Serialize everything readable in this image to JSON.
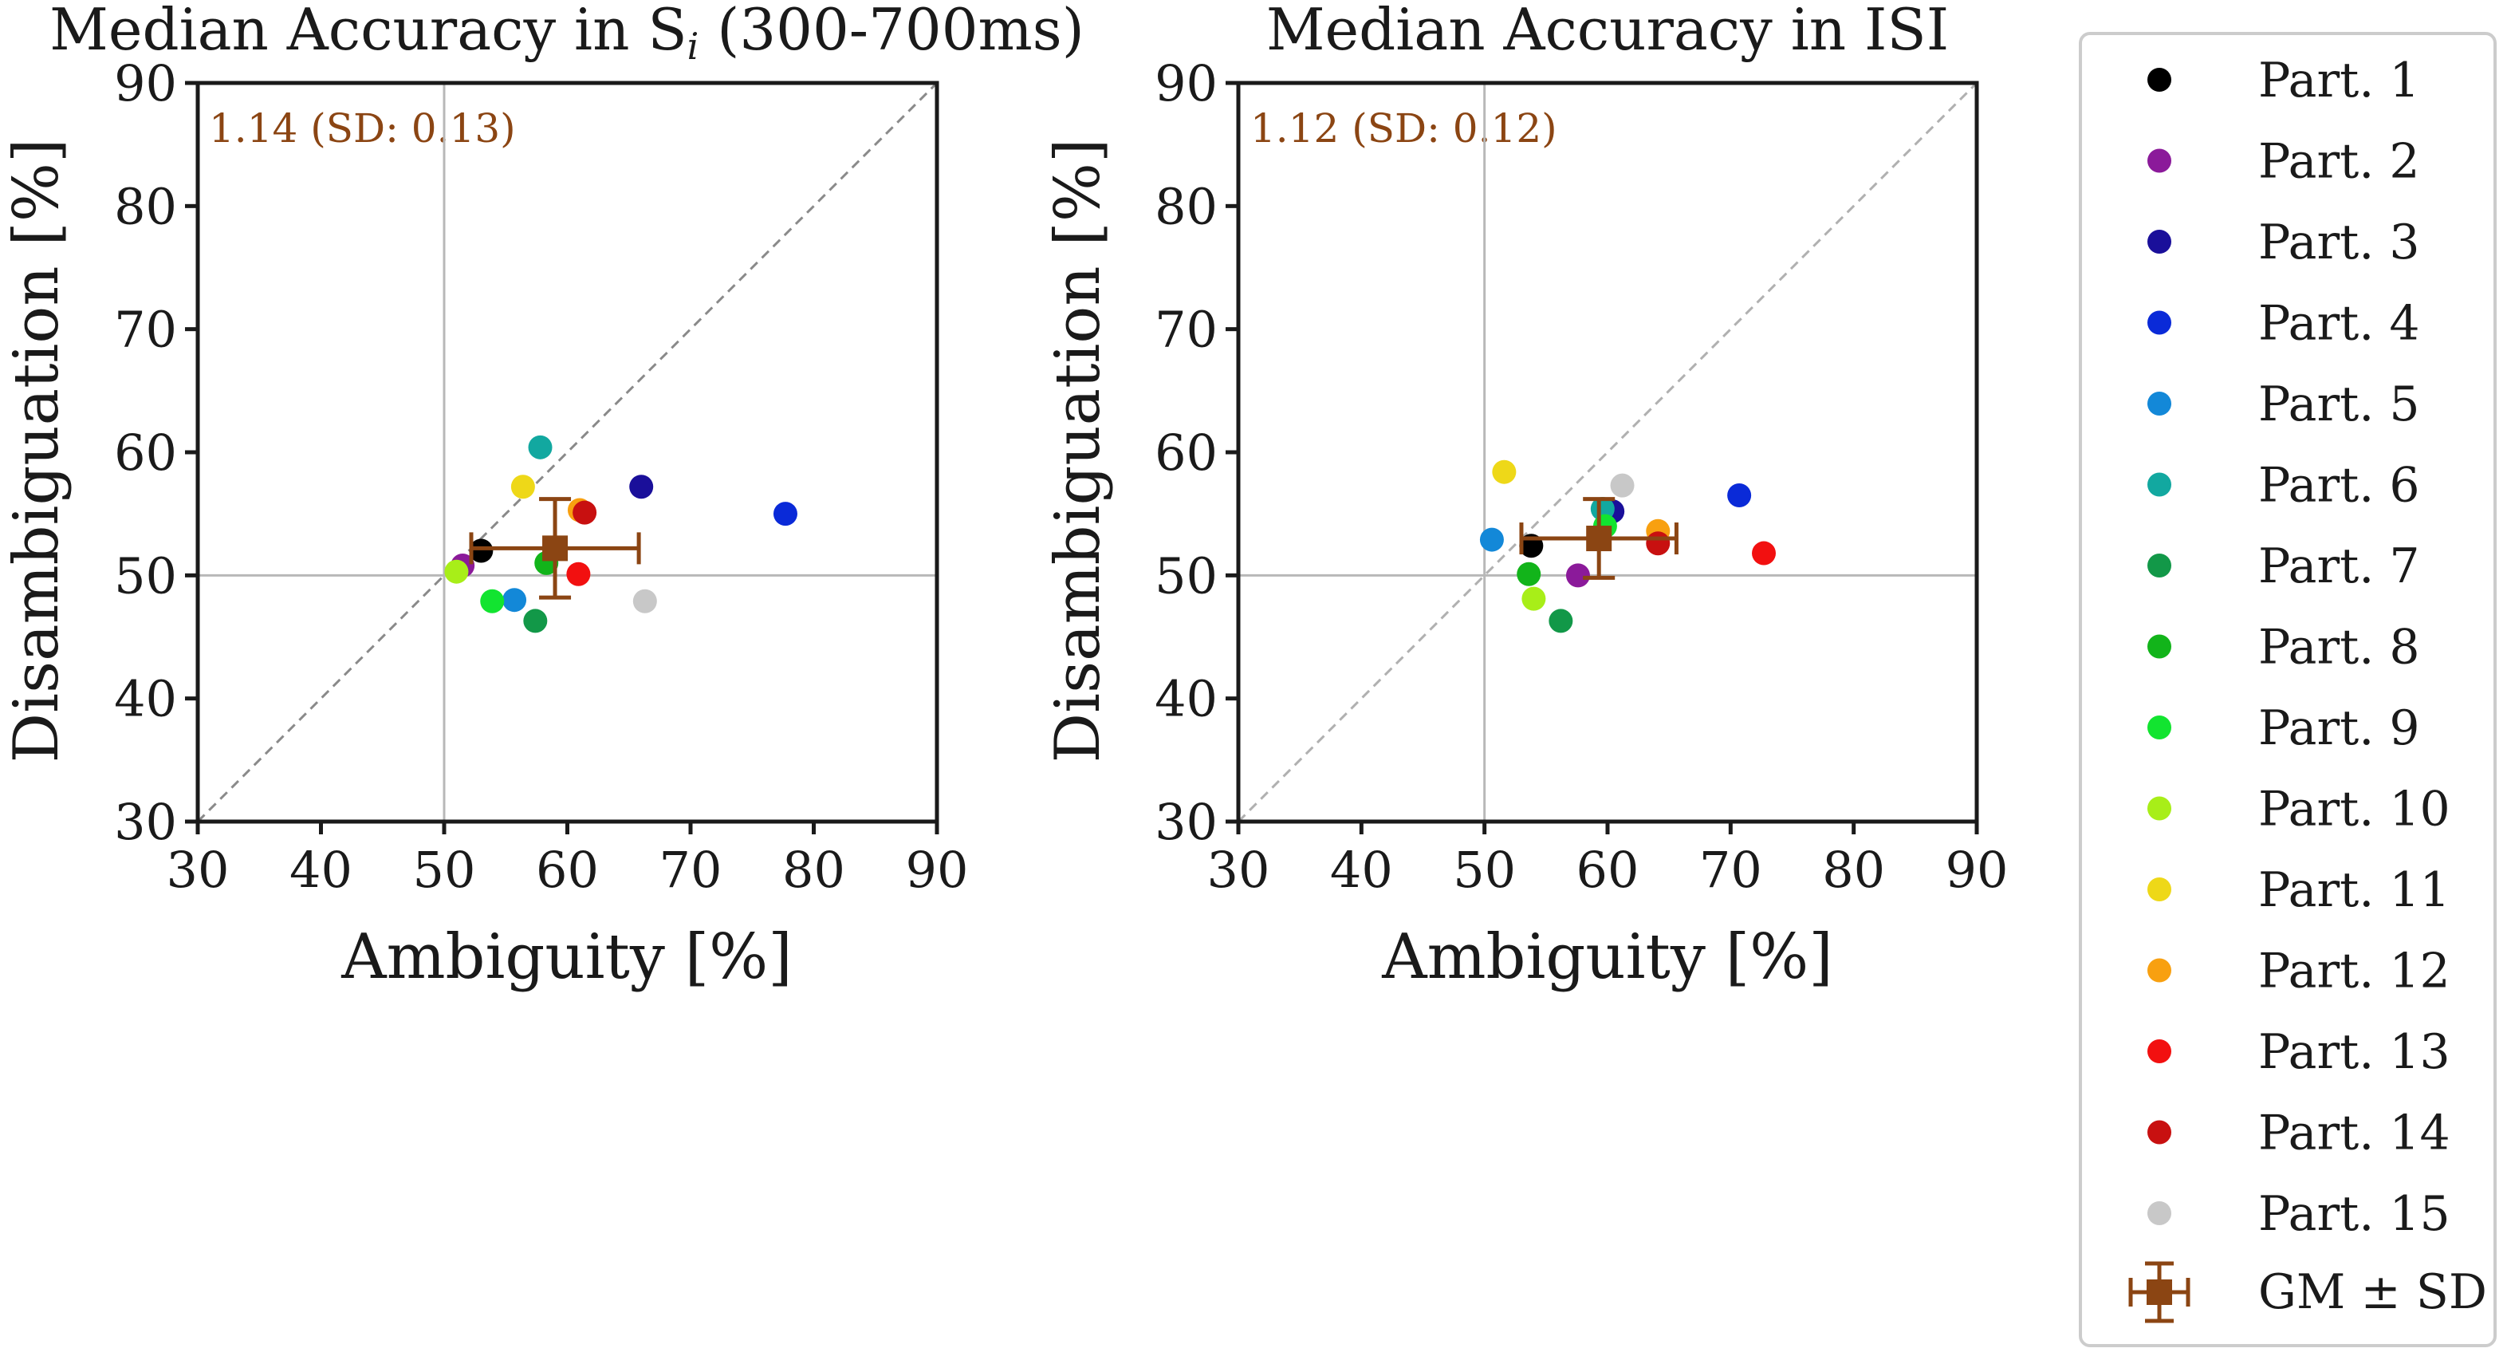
{
  "chart_data": {
    "type": "scatter",
    "axis_range": [
      30,
      90
    ],
    "ticks": [
      30,
      40,
      50,
      60,
      70,
      80,
      90
    ],
    "reference_lines": {
      "chance": 50,
      "diagonal": "identity"
    },
    "grand_mean_color": "#8B4513",
    "participants": [
      {
        "name": "Part. 1",
        "color": "#000000"
      },
      {
        "name": "Part. 2",
        "color": "#8B1A9A"
      },
      {
        "name": "Part. 3",
        "color": "#1A0F9A"
      },
      {
        "name": "Part. 4",
        "color": "#0A2AD8"
      },
      {
        "name": "Part. 5",
        "color": "#1388D8"
      },
      {
        "name": "Part. 6",
        "color": "#12A8A0"
      },
      {
        "name": "Part. 7",
        "color": "#129848"
      },
      {
        "name": "Part. 8",
        "color": "#12B41A"
      },
      {
        "name": "Part. 9",
        "color": "#12E430"
      },
      {
        "name": "Part. 10",
        "color": "#A8EE18"
      },
      {
        "name": "Part. 11",
        "color": "#EED818"
      },
      {
        "name": "Part. 12",
        "color": "#F8A010"
      },
      {
        "name": "Part. 13",
        "color": "#F21010"
      },
      {
        "name": "Part. 14",
        "color": "#C81010"
      },
      {
        "name": "Part. 15",
        "color": "#C8C8C8"
      }
    ],
    "panels": [
      {
        "title_main": "Median Accuracy in S",
        "title_sub": "i",
        "title_tail": " (300-700ms)",
        "xlabel": "Ambiguity [%]",
        "ylabel": "Disambiguation [%]",
        "annotation": "1.14 (SD: 0.13)",
        "points": [
          [
            53.0,
            52.0
          ],
          [
            51.5,
            50.8
          ],
          [
            66.0,
            57.2
          ],
          [
            77.7,
            55.0
          ],
          [
            55.7,
            48.0
          ],
          [
            57.8,
            60.4
          ],
          [
            57.4,
            46.3
          ],
          [
            58.3,
            51.0
          ],
          [
            53.9,
            47.9
          ],
          [
            51.0,
            50.3
          ],
          [
            56.4,
            57.2
          ],
          [
            61.0,
            55.3
          ],
          [
            60.9,
            50.1
          ],
          [
            61.4,
            55.1
          ],
          [
            66.3,
            47.9
          ]
        ],
        "grand_mean": {
          "x": 59.0,
          "y": 52.2,
          "x_sd": 6.8,
          "y_sd": 4.0
        }
      },
      {
        "title_main": "Median Accuracy in ISI",
        "title_sub": "",
        "title_tail": "",
        "xlabel": "Ambiguity [%]",
        "ylabel": "Disambiguation [%]",
        "annotation": "1.12 (SD: 0.12)",
        "points": [
          [
            53.8,
            52.4
          ],
          [
            57.6,
            50.0
          ],
          [
            60.4,
            55.2
          ],
          [
            70.7,
            56.5
          ],
          [
            50.6,
            52.9
          ],
          [
            59.6,
            55.4
          ],
          [
            56.2,
            46.3
          ],
          [
            53.6,
            50.1
          ],
          [
            59.8,
            54.0
          ],
          [
            54.0,
            48.1
          ],
          [
            51.6,
            58.4
          ],
          [
            64.1,
            53.6
          ],
          [
            72.7,
            51.8
          ],
          [
            64.1,
            52.6
          ],
          [
            61.2,
            57.3
          ]
        ],
        "grand_mean": {
          "x": 59.3,
          "y": 53.0,
          "x_sd": 6.3,
          "y_sd": 3.2
        }
      }
    ],
    "legend": {
      "grand_mean_label": "GM ± SD",
      "position": "right"
    }
  }
}
